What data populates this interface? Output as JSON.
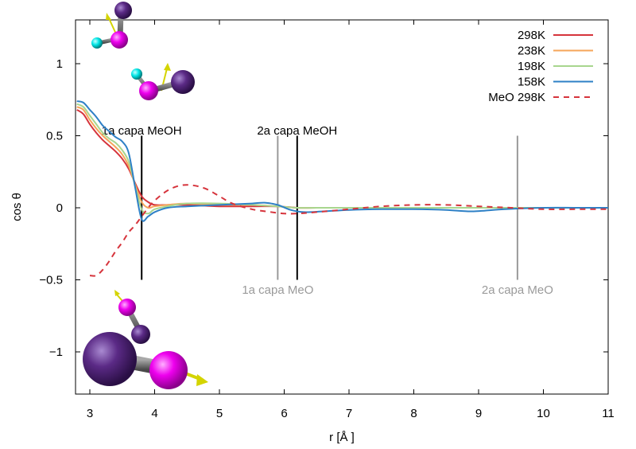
{
  "chart_data": {
    "type": "line",
    "xlabel": "r [Å ]",
    "ylabel": "cos θ",
    "xlim": [
      2.8,
      11
    ],
    "ylim": [
      -1.3,
      1.3
    ],
    "x_ticks": [
      3,
      4,
      5,
      6,
      7,
      8,
      9,
      10,
      11
    ],
    "x_tick_labels": [
      "3",
      "4",
      "5",
      "6",
      "7",
      "8",
      "9",
      "10",
      "11"
    ],
    "y_ticks": [
      -1,
      -0.5,
      0,
      0.5,
      1
    ],
    "y_tick_labels": [
      "−1",
      "−0.5",
      "0",
      "0.5",
      "1"
    ],
    "grid": false,
    "legend_position": "top-right",
    "series": [
      {
        "name": "298K",
        "color": "#d6343c",
        "dash": "solid",
        "x": [
          2.8,
          2.9,
          3.0,
          3.1,
          3.2,
          3.3,
          3.4,
          3.5,
          3.6,
          3.7,
          3.8,
          3.9,
          4.0,
          4.2,
          4.5,
          5.0,
          5.5,
          5.9,
          6.2,
          6.5,
          7.0,
          8.0,
          9.0,
          10.0,
          11.0
        ],
        "y": [
          0.68,
          0.65,
          0.58,
          0.52,
          0.47,
          0.43,
          0.39,
          0.34,
          0.27,
          0.17,
          0.08,
          0.04,
          0.02,
          0.02,
          0.02,
          0.01,
          0.01,
          0.01,
          0.0,
          0.0,
          0.0,
          0.0,
          0.0,
          0.0,
          0.0
        ]
      },
      {
        "name": "238K",
        "color": "#f5a55a",
        "dash": "solid",
        "x": [
          2.8,
          2.9,
          3.0,
          3.1,
          3.2,
          3.3,
          3.4,
          3.5,
          3.6,
          3.7,
          3.8,
          3.9,
          4.0,
          4.2,
          4.5,
          5.0,
          5.5,
          5.9,
          6.2,
          6.5,
          7.0,
          8.0,
          9.0,
          10.0,
          11.0
        ],
        "y": [
          0.7,
          0.68,
          0.61,
          0.55,
          0.5,
          0.46,
          0.42,
          0.37,
          0.29,
          0.16,
          0.04,
          0.0,
          0.01,
          0.02,
          0.03,
          0.02,
          0.02,
          0.01,
          0.0,
          0.0,
          0.0,
          0.0,
          0.0,
          0.0,
          0.0
        ]
      },
      {
        "name": "198K",
        "color": "#a8d68e",
        "dash": "solid",
        "x": [
          2.8,
          2.9,
          3.0,
          3.1,
          3.2,
          3.3,
          3.4,
          3.5,
          3.6,
          3.7,
          3.8,
          3.9,
          4.0,
          4.2,
          4.5,
          5.0,
          5.5,
          5.9,
          6.2,
          6.5,
          7.0,
          8.0,
          9.0,
          10.0,
          11.0
        ],
        "y": [
          0.72,
          0.7,
          0.64,
          0.58,
          0.52,
          0.48,
          0.45,
          0.4,
          0.32,
          0.15,
          -0.01,
          -0.04,
          -0.01,
          0.01,
          0.03,
          0.03,
          0.02,
          0.01,
          0.0,
          0.0,
          0.0,
          0.0,
          0.0,
          0.0,
          0.0
        ]
      },
      {
        "name": "158K",
        "color": "#2e80c6",
        "dash": "solid",
        "x": [
          2.8,
          2.9,
          3.0,
          3.1,
          3.2,
          3.3,
          3.4,
          3.5,
          3.6,
          3.7,
          3.8,
          3.9,
          4.0,
          4.2,
          4.5,
          5.0,
          5.5,
          5.7,
          5.9,
          6.1,
          6.3,
          6.6,
          7.0,
          7.5,
          8.0,
          8.5,
          8.9,
          9.4,
          10.0,
          10.5,
          11.0
        ],
        "y": [
          0.74,
          0.73,
          0.68,
          0.63,
          0.57,
          0.53,
          0.49,
          0.46,
          0.38,
          0.14,
          -0.08,
          -0.06,
          -0.03,
          0.0,
          0.01,
          0.02,
          0.03,
          0.035,
          0.02,
          -0.015,
          -0.03,
          -0.025,
          -0.015,
          -0.01,
          -0.01,
          -0.015,
          -0.025,
          -0.01,
          0.0,
          0.0,
          0.0
        ]
      },
      {
        "name": "MeO 298K",
        "color": "#d6343c",
        "dash": "dashed",
        "x": [
          3.0,
          3.1,
          3.2,
          3.3,
          3.4,
          3.5,
          3.6,
          3.7,
          3.8,
          3.9,
          4.0,
          4.2,
          4.4,
          4.6,
          4.8,
          5.0,
          5.2,
          5.5,
          5.8,
          6.0,
          6.2,
          6.5,
          7.0,
          7.5,
          8.0,
          8.5,
          9.0,
          9.5,
          10.0,
          10.5,
          11.0
        ],
        "y": [
          -0.47,
          -0.47,
          -0.43,
          -0.37,
          -0.3,
          -0.24,
          -0.17,
          -0.12,
          -0.06,
          0.0,
          0.05,
          0.12,
          0.155,
          0.155,
          0.13,
          0.08,
          0.03,
          -0.01,
          -0.03,
          -0.04,
          -0.04,
          -0.03,
          -0.01,
          0.01,
          0.02,
          0.02,
          0.01,
          0.0,
          -0.01,
          -0.01,
          -0.01
        ]
      }
    ],
    "vertical_markers": [
      {
        "x": 3.8,
        "y_range": [
          -0.5,
          0.5
        ],
        "color": "#000000",
        "label": "1a capa MeOH",
        "label_position": "top"
      },
      {
        "x": 5.9,
        "y_range": [
          -0.5,
          0.5
        ],
        "color": "#9a9a9a",
        "label": "1a capa MeO",
        "label_position": "bottom"
      },
      {
        "x": 6.2,
        "y_range": [
          -0.5,
          0.5
        ],
        "color": "#000000",
        "label": "2a capa MeOH",
        "label_position": "top"
      },
      {
        "x": 9.6,
        "y_range": [
          -0.5,
          0.5
        ],
        "color": "#9a9a9a",
        "label": "2a capa MeO",
        "label_position": "bottom"
      }
    ]
  },
  "molecule_colors": {
    "oxygen": "#e800e8",
    "hydrogen": "#00e6e6",
    "methyl": "#5b2a86",
    "bond": "#7a7a7a",
    "dipole_arrow": "#d4d400"
  }
}
